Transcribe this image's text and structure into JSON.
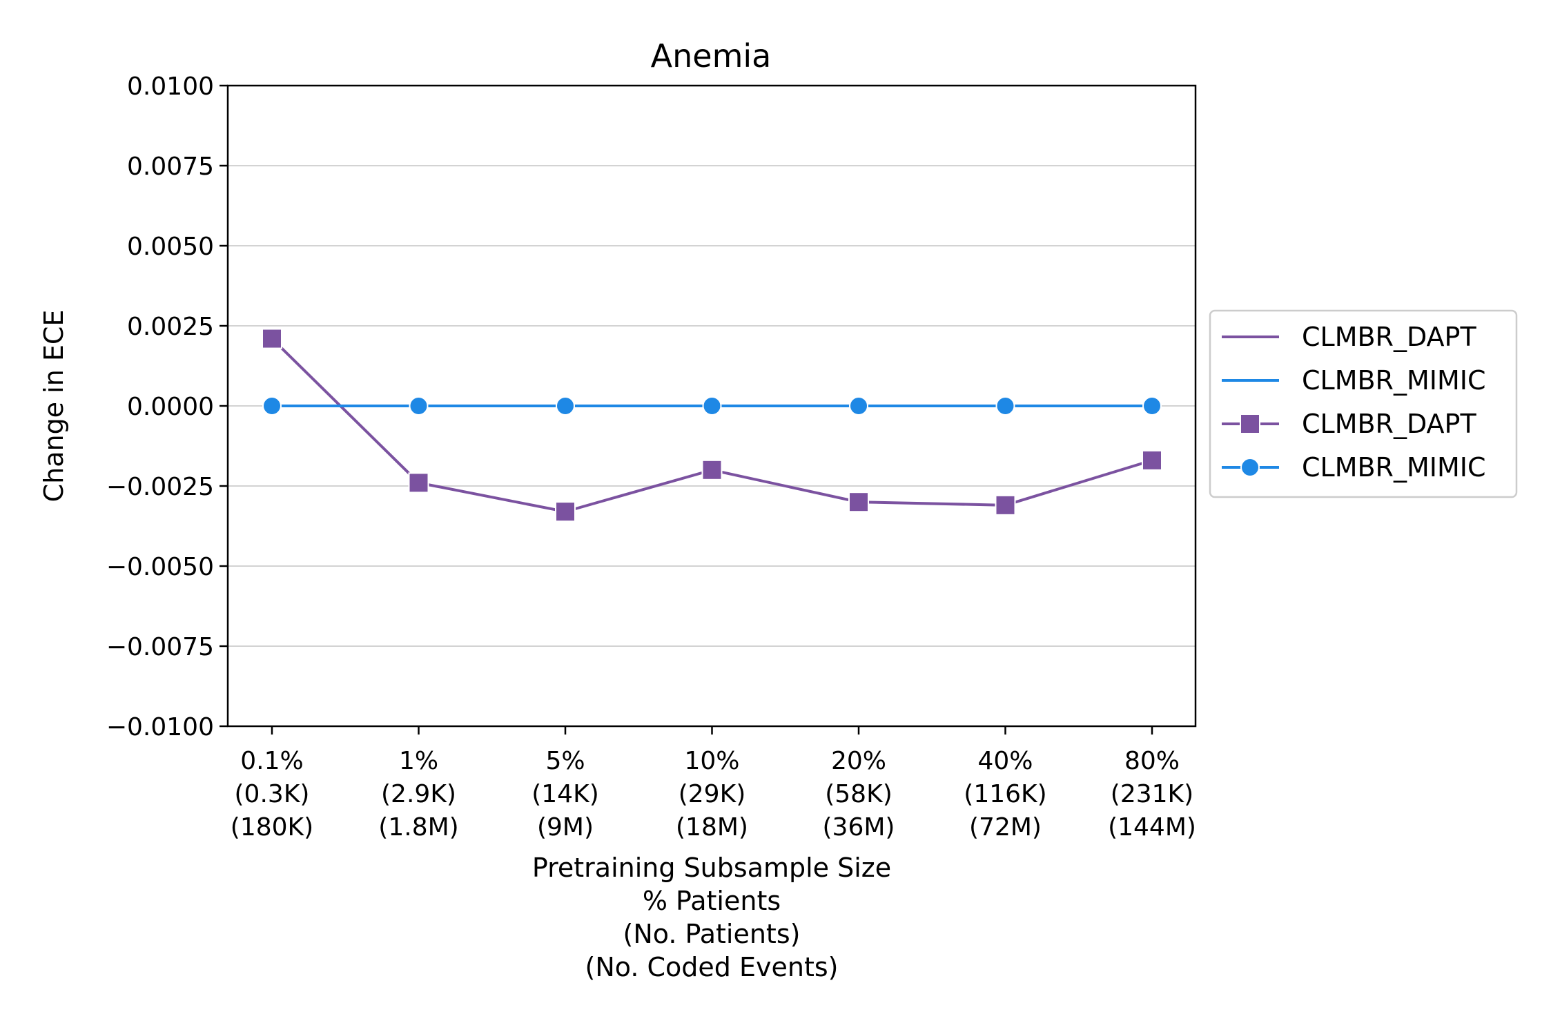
{
  "chart_data": {
    "type": "line",
    "title": "Anemia",
    "xlabel": [
      "Pretraining Subsample Size",
      "% Patients",
      "(No. Patients)",
      "(No. Coded Events)"
    ],
    "ylabel": "Change in ECE",
    "ylim": [
      -0.01,
      0.01
    ],
    "yticks": [
      "0.0100",
      "0.0075",
      "0.0050",
      "0.0025",
      "0.0000",
      "−0.0025",
      "−0.0050",
      "−0.0075",
      "−0.0100"
    ],
    "ytick_values": [
      0.01,
      0.0075,
      0.005,
      0.0025,
      0,
      -0.0025,
      -0.005,
      -0.0075,
      -0.01
    ],
    "categories": [
      [
        "0.1%",
        "(0.3K)",
        "(180K)"
      ],
      [
        "1%",
        "(2.9K)",
        "(1.8M)"
      ],
      [
        "5%",
        "(14K)",
        "(9M)"
      ],
      [
        "10%",
        "(29K)",
        "(18M)"
      ],
      [
        "20%",
        "(58K)",
        "(36M)"
      ],
      [
        "40%",
        "(116K)",
        "(72M)"
      ],
      [
        "80%",
        "(231K)",
        "(144M)"
      ]
    ],
    "grid": "horizontal",
    "legend_position": "outside-right",
    "series": [
      {
        "name": "CLMBR_DAPT",
        "color": "#7b52a0",
        "marker": "square",
        "values": [
          0.0021,
          -0.0024,
          -0.0033,
          -0.002,
          -0.003,
          -0.0031,
          -0.0017
        ]
      },
      {
        "name": "CLMBR_MIMIC",
        "color": "#1e88e5",
        "marker": "circle",
        "values": [
          0,
          0,
          0,
          0,
          0,
          0,
          0
        ]
      }
    ],
    "legend": [
      {
        "label": "CLMBR_DAPT",
        "color": "#7b52a0",
        "marker": "none"
      },
      {
        "label": "CLMBR_MIMIC",
        "color": "#1e88e5",
        "marker": "none"
      },
      {
        "label": "CLMBR_DAPT",
        "color": "#7b52a0",
        "marker": "square"
      },
      {
        "label": "CLMBR_MIMIC",
        "color": "#1e88e5",
        "marker": "circle"
      }
    ]
  }
}
